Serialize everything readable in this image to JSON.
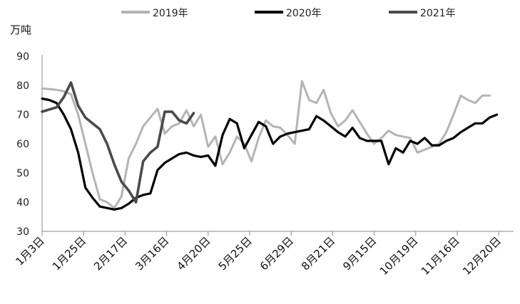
{
  "chart_data": {
    "type": "line",
    "ylabel": "万吨",
    "ylim": [
      30,
      90
    ],
    "yticks": [
      30,
      40,
      50,
      60,
      70,
      80,
      90
    ],
    "grid": false,
    "legend_position": "top",
    "x_tick_labels": [
      "1月3日",
      "1月25日",
      "2月17日",
      "3月16日",
      "4月20日",
      "5月25日",
      "6月29日",
      "8月21日",
      "9月15日",
      "10月19日",
      "11月16日",
      "12月20日"
    ],
    "series": [
      {
        "name": "2019年",
        "color": "#b4b4b4",
        "values": [
          [
            0,
            79
          ],
          [
            2,
            78.5
          ],
          [
            3,
            78
          ],
          [
            4,
            77
          ],
          [
            5,
            70
          ],
          [
            6,
            60
          ],
          [
            7,
            50
          ],
          [
            8,
            41
          ],
          [
            9,
            40
          ],
          [
            10,
            38
          ],
          [
            11,
            42
          ],
          [
            12,
            55
          ],
          [
            13,
            60
          ],
          [
            14,
            66
          ],
          [
            15,
            69
          ],
          [
            16,
            72
          ],
          [
            17,
            63.5
          ],
          [
            18,
            66
          ],
          [
            19,
            67
          ],
          [
            20,
            71.5
          ],
          [
            21,
            66
          ],
          [
            22,
            70
          ],
          [
            23,
            59
          ],
          [
            24,
            62.5
          ],
          [
            25,
            53
          ],
          [
            26,
            57
          ],
          [
            27,
            62.5
          ],
          [
            28,
            60
          ],
          [
            29,
            54
          ],
          [
            30,
            62
          ],
          [
            31,
            68
          ],
          [
            32,
            66
          ],
          [
            33,
            65.5
          ],
          [
            34,
            63
          ],
          [
            35,
            60
          ],
          [
            36,
            81.5
          ],
          [
            37,
            75
          ],
          [
            38,
            74
          ],
          [
            39,
            78.5
          ],
          [
            40,
            70.5
          ],
          [
            41,
            66
          ],
          [
            42,
            68
          ],
          [
            43,
            71.5
          ],
          [
            44,
            67.5
          ],
          [
            45,
            63.5
          ],
          [
            46,
            60
          ],
          [
            47,
            62
          ],
          [
            48,
            64.5
          ],
          [
            49,
            63
          ],
          [
            50,
            62.5
          ],
          [
            51,
            62
          ],
          [
            52,
            57
          ],
          [
            53,
            58
          ],
          [
            54,
            59
          ],
          [
            55,
            60
          ],
          [
            56,
            64
          ],
          [
            57,
            70
          ],
          [
            58,
            76.5
          ],
          [
            59,
            75
          ],
          [
            60,
            74
          ],
          [
            61,
            76.5
          ],
          [
            62,
            76.5
          ]
        ]
      },
      {
        "name": "2020年",
        "color": "#000000",
        "values": [
          [
            0,
            75.5
          ],
          [
            1,
            75
          ],
          [
            2,
            74
          ],
          [
            3,
            70
          ],
          [
            4,
            65
          ],
          [
            5,
            57
          ],
          [
            6,
            45
          ],
          [
            7,
            41.5
          ],
          [
            8,
            38.5
          ],
          [
            9,
            38
          ],
          [
            10,
            37.5
          ],
          [
            11,
            38
          ],
          [
            12,
            39.5
          ],
          [
            13,
            41.5
          ],
          [
            14,
            42.5
          ],
          [
            15,
            43
          ],
          [
            16,
            51
          ],
          [
            17,
            53.5
          ],
          [
            18,
            55
          ],
          [
            19,
            56.5
          ],
          [
            20,
            57
          ],
          [
            21,
            56
          ],
          [
            22,
            55.5
          ],
          [
            23,
            56
          ],
          [
            24,
            52.5
          ],
          [
            25,
            63
          ],
          [
            26,
            68.5
          ],
          [
            27,
            67
          ],
          [
            28,
            58.5
          ],
          [
            29,
            63
          ],
          [
            30,
            67.5
          ],
          [
            31,
            66
          ],
          [
            32,
            60
          ],
          [
            33,
            62.5
          ],
          [
            34,
            63.5
          ],
          [
            35,
            64
          ],
          [
            36,
            64.5
          ],
          [
            37,
            65
          ],
          [
            38,
            69.5
          ],
          [
            39,
            68
          ],
          [
            40,
            66
          ],
          [
            41,
            64
          ],
          [
            42,
            62.5
          ],
          [
            43,
            65.5
          ],
          [
            44,
            62
          ],
          [
            45,
            61
          ],
          [
            46,
            61
          ],
          [
            47,
            61
          ],
          [
            48,
            53
          ],
          [
            49,
            58.5
          ],
          [
            50,
            57
          ],
          [
            51,
            61
          ],
          [
            52,
            60
          ],
          [
            53,
            62
          ],
          [
            54,
            59.5
          ],
          [
            55,
            59.5
          ],
          [
            56,
            61
          ],
          [
            57,
            62
          ],
          [
            58,
            64
          ],
          [
            59,
            65.5
          ],
          [
            60,
            67
          ],
          [
            61,
            67
          ],
          [
            62,
            69
          ],
          [
            63,
            70
          ]
        ]
      },
      {
        "name": "2021年",
        "color": "#4a4a4a",
        "values": [
          [
            0,
            71
          ],
          [
            2,
            72.5
          ],
          [
            3,
            76
          ],
          [
            4,
            81
          ],
          [
            5,
            73
          ],
          [
            6,
            69
          ],
          [
            7,
            67
          ],
          [
            8,
            65
          ],
          [
            9,
            60
          ],
          [
            10,
            53
          ],
          [
            11,
            47
          ],
          [
            12,
            44
          ],
          [
            13,
            40
          ],
          [
            14,
            54
          ],
          [
            15,
            57
          ],
          [
            16,
            59
          ],
          [
            17,
            71
          ],
          [
            18,
            71
          ],
          [
            19,
            68
          ],
          [
            20,
            67
          ],
          [
            21,
            70.5
          ]
        ]
      }
    ]
  }
}
